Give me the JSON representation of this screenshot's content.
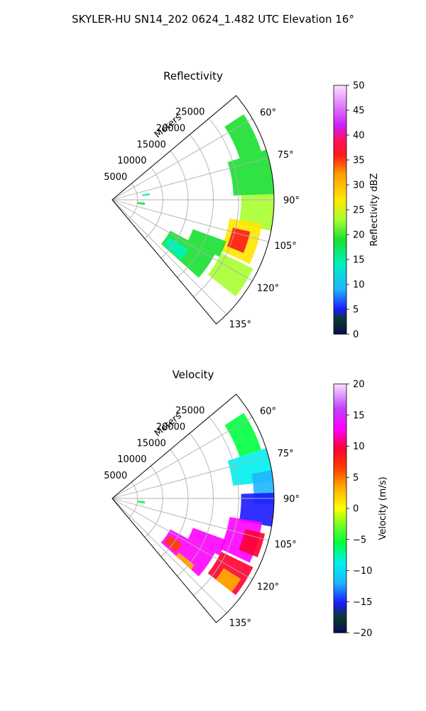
{
  "figure": {
    "suptitle": "SKYLER-HU  SN14_202  0624_1.482 UTC Elevation 16°"
  },
  "chart_data": [
    {
      "type": "heatmap",
      "projection": "polar-sector",
      "title": "Reflectivity",
      "range_axis_label": "Meters",
      "range_ticks": [
        "5000",
        "10000",
        "15000",
        "20000",
        "25000"
      ],
      "range_tick_values": [
        5000,
        10000,
        15000,
        20000,
        25000
      ],
      "range_max": 32000,
      "azimuth_range_deg": [
        50,
        140
      ],
      "azimuth_ticks": [
        "60°",
        "75°",
        "90°",
        "105°",
        "120°",
        "135°"
      ],
      "azimuth_tick_values": [
        60,
        75,
        90,
        105,
        120,
        135
      ],
      "grid": true,
      "colorbar": {
        "label": "Reflectivity dBZ",
        "range": [
          0,
          50
        ],
        "ticks": [
          "0",
          "5",
          "10",
          "15",
          "20",
          "25",
          "30",
          "35",
          "40",
          "45",
          "50"
        ],
        "tick_values": [
          0,
          5,
          10,
          15,
          20,
          25,
          30,
          35,
          40,
          45,
          50
        ]
      },
      "echo_regions": [
        {
          "az": [
            57,
            72
          ],
          "range": [
            26500,
            31000
          ],
          "value": 20
        },
        {
          "az": [
            72,
            88
          ],
          "range": [
            24000,
            32000
          ],
          "value": 21
        },
        {
          "az": [
            88,
            101
          ],
          "range": [
            25500,
            32000
          ],
          "value": 25
        },
        {
          "az": [
            99,
            115
          ],
          "range": [
            23500,
            30000
          ],
          "value": 28
        },
        {
          "az": [
            103,
            112
          ],
          "range": [
            24500,
            28000
          ],
          "value": 36
        },
        {
          "az": [
            116,
            128
          ],
          "range": [
            24000,
            31000
          ],
          "value": 26
        },
        {
          "az": [
            110,
            118
          ],
          "range": [
            17000,
            24000
          ],
          "value": 19
        },
        {
          "az": [
            118,
            132
          ],
          "range": [
            13000,
            23000
          ],
          "value": 22
        },
        {
          "az": [
            123,
            131
          ],
          "range": [
            13500,
            18000
          ],
          "value": 16
        },
        {
          "az": [
            80,
            83
          ],
          "range": [
            6000,
            7500
          ],
          "value": 18
        },
        {
          "az": [
            95,
            99
          ],
          "range": [
            5000,
            6500
          ],
          "value": 20
        }
      ]
    },
    {
      "type": "heatmap",
      "projection": "polar-sector",
      "title": "Velocity",
      "range_axis_label": "Meters",
      "range_ticks": [
        "5000",
        "10000",
        "15000",
        "20000",
        "25000"
      ],
      "range_tick_values": [
        5000,
        10000,
        15000,
        20000,
        25000
      ],
      "range_max": 32000,
      "azimuth_range_deg": [
        50,
        140
      ],
      "azimuth_ticks": [
        "60°",
        "75°",
        "90°",
        "105°",
        "120°",
        "135°"
      ],
      "azimuth_tick_values": [
        60,
        75,
        90,
        105,
        120,
        135
      ],
      "grid": true,
      "colorbar": {
        "label": "Velocity (m/s)",
        "range": [
          -20,
          20
        ],
        "ticks": [
          "−20",
          "−15",
          "−10",
          "−5",
          "0",
          "5",
          "10",
          "15",
          "20"
        ],
        "tick_values": [
          -20,
          -15,
          -10,
          -5,
          0,
          5,
          10,
          15,
          20
        ]
      },
      "echo_regions": [
        {
          "az": [
            57,
            72
          ],
          "range": [
            26500,
            31000
          ],
          "value": -7
        },
        {
          "az": [
            72,
            84
          ],
          "range": [
            24000,
            32000
          ],
          "value": -10
        },
        {
          "az": [
            80,
            92
          ],
          "range": [
            28000,
            32000
          ],
          "value": -12
        },
        {
          "az": [
            88,
            100
          ],
          "range": [
            25500,
            32000
          ],
          "value": -13
        },
        {
          "az": [
            99,
            115
          ],
          "range": [
            23500,
            30000
          ],
          "value": 14
        },
        {
          "az": [
            103,
            112
          ],
          "range": [
            27000,
            31000
          ],
          "value": 11
        },
        {
          "az": [
            116,
            128
          ],
          "range": [
            24000,
            31000
          ],
          "value": 9
        },
        {
          "az": [
            122,
            128
          ],
          "range": [
            26000,
            30000
          ],
          "value": 4
        },
        {
          "az": [
            110,
            118
          ],
          "range": [
            17000,
            24000
          ],
          "value": 14
        },
        {
          "az": [
            118,
            132
          ],
          "range": [
            13000,
            23000
          ],
          "value": 14
        },
        {
          "az": [
            123,
            130
          ],
          "range": [
            13500,
            16500
          ],
          "value": 8
        },
        {
          "az": [
            129,
            132
          ],
          "range": [
            17000,
            21000
          ],
          "value": 3
        },
        {
          "az": [
            95,
            99
          ],
          "range": [
            5000,
            6500
          ],
          "value": -6
        }
      ]
    }
  ]
}
